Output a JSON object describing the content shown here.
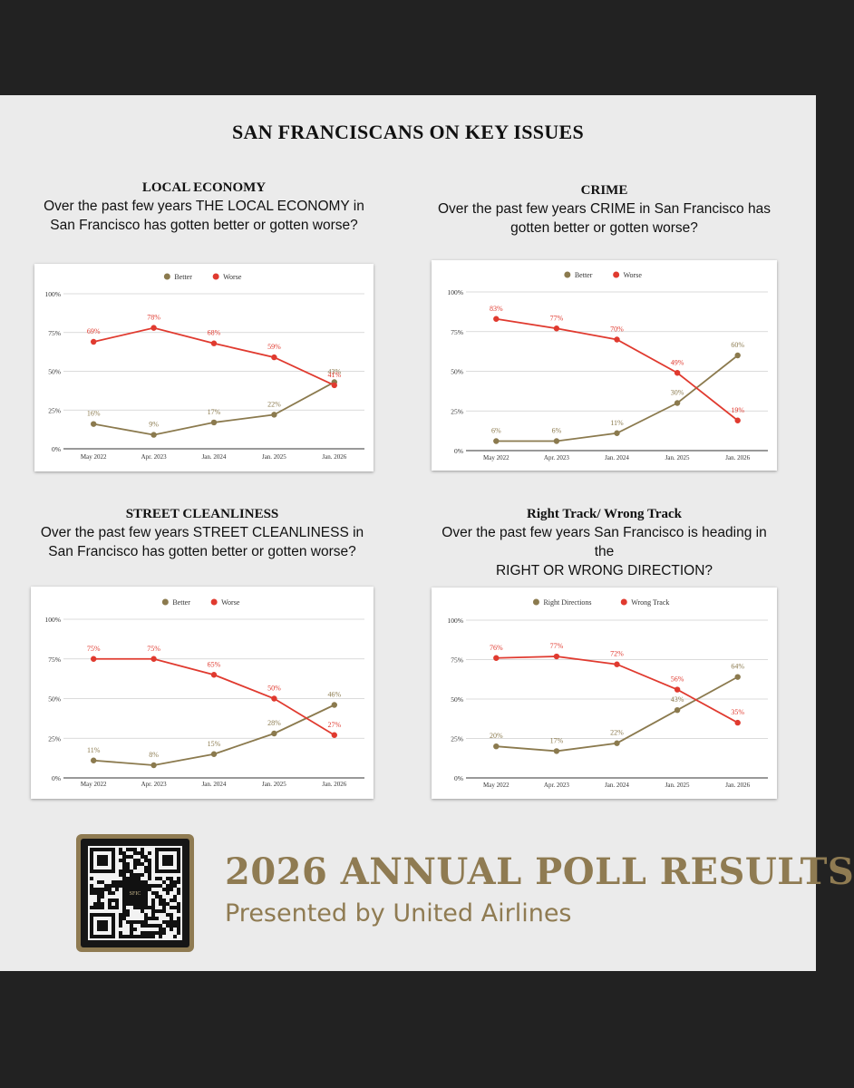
{
  "page": {
    "title": "SAN FRANCISCANS ON KEY  ISSUES"
  },
  "colors": {
    "better": "#8b7a4e",
    "worse": "#e03a2f",
    "gold": "#8f7b52"
  },
  "sections": [
    {
      "title": "LOCAL ECONOMY",
      "question_lines": [
        "Over the past few years THE LOCAL ECONOMY in",
        "San Francisco has gotten better or gotten worse?"
      ]
    },
    {
      "title": "CRIME",
      "question_lines": [
        "Over the past few years CRIME  in San Francisco has",
        "gotten better or gotten worse?"
      ]
    },
    {
      "title": "STREET CLEANLINESS",
      "question_lines": [
        "Over the past few years STREET CLEANLINESS in",
        "San Francisco has gotten better or gotten worse?"
      ]
    },
    {
      "title": "Right Track/ Wrong Track",
      "question_lines": [
        "Over the past few years San Francisco is heading in the",
        "RIGHT OR WRONG DIRECTION?"
      ]
    }
  ],
  "chart_data": [
    {
      "type": "line",
      "title": "LOCAL ECONOMY",
      "categories": [
        "May 2022",
        "Apr. 2023",
        "Jan. 2024",
        "Jan. 2025",
        "Jan. 2026"
      ],
      "y_ticks": [
        "100%",
        "75%",
        "50%",
        "25%",
        "0%"
      ],
      "ylim": [
        0,
        100
      ],
      "legend_position": "top-center",
      "series": [
        {
          "name": "Better",
          "values": [
            16,
            9,
            17,
            22,
            43
          ],
          "labels": [
            "16%",
            "9%",
            "17%",
            "22%",
            "43%"
          ]
        },
        {
          "name": "Worse",
          "values": [
            69,
            78,
            68,
            59,
            41
          ],
          "labels": [
            "69%",
            "78%",
            "68%",
            "59%",
            "41%"
          ]
        }
      ]
    },
    {
      "type": "line",
      "title": "CRIME",
      "categories": [
        "May 2022",
        "Apr. 2023",
        "Jan. 2024",
        "Jan. 2025",
        "Jan. 2026"
      ],
      "y_ticks": [
        "100%",
        "75%",
        "50%",
        "25%",
        "0%"
      ],
      "ylim": [
        0,
        100
      ],
      "legend_position": "top-center",
      "series": [
        {
          "name": "Better",
          "values": [
            6,
            6,
            11,
            30,
            60
          ],
          "labels": [
            "6%",
            "6%",
            "11%",
            "30%",
            "60%"
          ]
        },
        {
          "name": "Worse",
          "values": [
            83,
            77,
            70,
            49,
            19
          ],
          "labels": [
            "83%",
            "77%",
            "70%",
            "49%",
            "19%"
          ]
        }
      ]
    },
    {
      "type": "line",
      "title": "STREET CLEANLINESS",
      "categories": [
        "May 2022",
        "Apr. 2023",
        "Jan. 2024",
        "Jan. 2025",
        "Jan. 2026"
      ],
      "y_ticks": [
        "100%",
        "75%",
        "50%",
        "25%",
        "0%"
      ],
      "ylim": [
        0,
        100
      ],
      "legend_position": "top-center",
      "series": [
        {
          "name": "Better",
          "values": [
            11,
            8,
            15,
            28,
            46
          ],
          "labels": [
            "11%",
            "8%",
            "15%",
            "28%",
            "46%"
          ]
        },
        {
          "name": "Worse",
          "values": [
            75,
            75,
            65,
            50,
            27
          ],
          "labels": [
            "75%",
            "75%",
            "65%",
            "50%",
            "27%"
          ]
        }
      ]
    },
    {
      "type": "line",
      "title": "Right Track/ Wrong Track",
      "categories": [
        "May 2022",
        "Apr. 2023",
        "Jan. 2024",
        "Jan. 2025",
        "Jan. 2026"
      ],
      "y_ticks": [
        "100%",
        "75%",
        "50%",
        "25%",
        "0%"
      ],
      "ylim": [
        0,
        100
      ],
      "legend_position": "top-center",
      "series": [
        {
          "name": "Right Directions",
          "values": [
            20,
            17,
            22,
            43,
            64
          ],
          "labels": [
            "20%",
            "17%",
            "22%",
            "43%",
            "64%"
          ]
        },
        {
          "name": "Wrong Track",
          "values": [
            76,
            77,
            72,
            56,
            35
          ],
          "labels": [
            "76%",
            "77%",
            "72%",
            "56%",
            "35%"
          ]
        }
      ]
    }
  ],
  "footer": {
    "headline": "2026 ANNUAL POLL  RESULTS",
    "subline": "Presented by United Airlines",
    "qr_center_label": "SFIC"
  }
}
